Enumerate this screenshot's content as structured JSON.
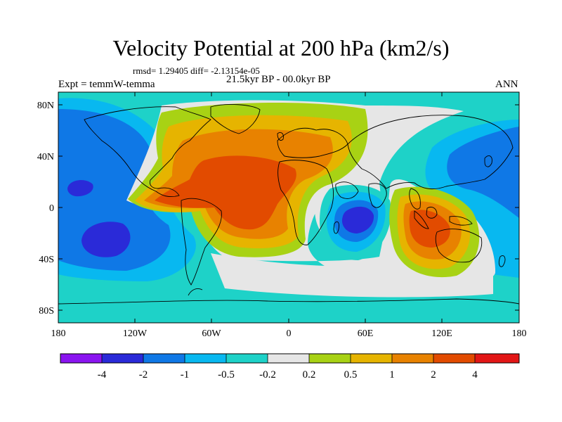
{
  "title": "Velocity Potential at 200 hPa (km2/s)",
  "rmsd_line": "rmsd= 1.29405 diff= -2.13154e-05",
  "subtitle_center": "21.5kyr BP - 00.0kyr BP",
  "subtitle_left": "Expt = temmW-temma",
  "subtitle_right": "ANN",
  "lat_labels": [
    "80N",
    "40N",
    "0",
    "40S",
    "80S"
  ],
  "lon_labels": [
    "180",
    "120W",
    "60W",
    "0",
    "60E",
    "120E",
    "180"
  ],
  "colorbar": {
    "labels": [
      "-4",
      "-2",
      "-1",
      "-0.5",
      "-0.2",
      "0.2",
      "0.5",
      "1",
      "2",
      "4"
    ],
    "colors": [
      "#8a14f0",
      "#2a2ad8",
      "#0f78e6",
      "#08b8f0",
      "#1ed2c8",
      "#e6e6e6",
      "#a8d214",
      "#e6b400",
      "#e88200",
      "#e24b00",
      "#e21616"
    ]
  },
  "palette": {
    "purple": "#8a14f0",
    "deep_blue": "#2a2ad8",
    "blue": "#0f78e6",
    "light_blue": "#08b8f0",
    "cyan": "#1ed2c8",
    "gray": "#e6e6e6",
    "lime": "#a8d214",
    "gold": "#e6b400",
    "orange": "#e88200",
    "red_orange": "#e24b00",
    "red": "#e21616"
  }
}
